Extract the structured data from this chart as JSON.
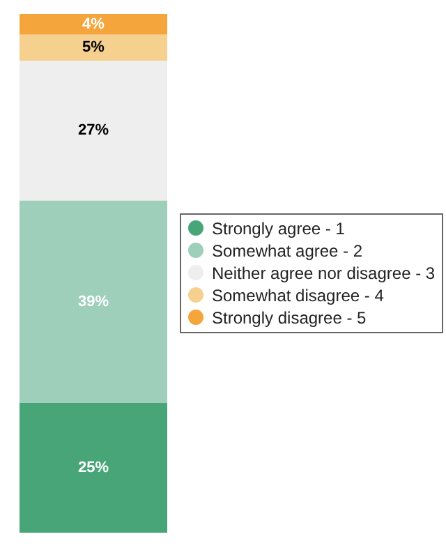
{
  "chart_data": {
    "type": "bar",
    "stacked": true,
    "categories": [
      null
    ],
    "legend": "right",
    "series": [
      {
        "name": "Strongly agree - 1",
        "color": "#48a578",
        "values": [
          25
        ],
        "value_labels": [
          "25%"
        ]
      },
      {
        "name": "Somewhat agree - 2",
        "color": "#9ecfbb",
        "values": [
          39
        ],
        "value_labels": [
          "39%"
        ]
      },
      {
        "name": "Neither agree nor disagree - 3",
        "color": "#eeeeee",
        "values": [
          27
        ],
        "value_labels": [
          "27%"
        ]
      },
      {
        "name": "Somewhat disagree - 4",
        "color": "#f5d08e",
        "values": [
          5
        ],
        "value_labels": [
          "5%"
        ]
      },
      {
        "name": "Strongly disagree - 5",
        "color": "#f4a53c",
        "values": [
          4
        ],
        "value_labels": [
          "4%"
        ]
      }
    ]
  }
}
